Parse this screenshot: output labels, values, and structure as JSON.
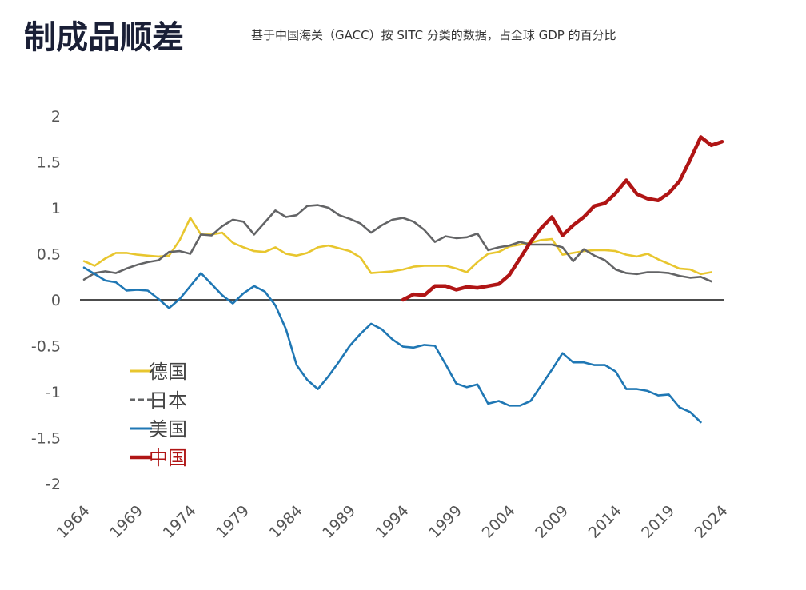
{
  "chart_data": {
    "type": "line",
    "title": "制成品顺差",
    "subtitle": "基于中国海关（GACC）按 SITC 分类的数据，占全球 GDP 的百分比",
    "xlabel": "",
    "ylabel": "",
    "xlim": [
      1964,
      2024
    ],
    "ylim": [
      -2,
      2
    ],
    "x_ticks": [
      "1964",
      "1969",
      "1974",
      "1979",
      "1984",
      "1989",
      "1994",
      "1999",
      "2004",
      "2009",
      "2014",
      "2019",
      "2024"
    ],
    "y_ticks": [
      "2",
      "1.5",
      "1",
      "0.5",
      "0",
      "-0.5",
      "-1",
      "-1.5",
      "-2"
    ],
    "grid": false,
    "zero_line": true,
    "legend_position": "bottom-left",
    "series": [
      {
        "name": "德国",
        "color": "#e8c62e",
        "style": "solid",
        "start": 1964,
        "values": [
          0.42,
          0.37,
          0.45,
          0.51,
          0.51,
          0.49,
          0.48,
          0.47,
          0.48,
          0.65,
          0.89,
          0.71,
          0.71,
          0.73,
          0.62,
          0.57,
          0.53,
          0.52,
          0.57,
          0.5,
          0.48,
          0.51,
          0.57,
          0.59,
          0.56,
          0.53,
          0.46,
          0.29,
          0.3,
          0.31,
          0.33,
          0.36,
          0.37,
          0.37,
          0.37,
          0.34,
          0.3,
          0.41,
          0.5,
          0.52,
          0.58,
          0.6,
          0.62,
          0.65,
          0.66,
          0.49,
          0.51,
          0.53,
          0.54,
          0.54,
          0.53,
          0.49,
          0.47,
          0.5,
          0.44,
          0.39,
          0.34,
          0.33,
          0.28,
          0.3
        ]
      },
      {
        "name": "日本",
        "color": "#636466",
        "style": "dashed-legend",
        "start": 1964,
        "values": [
          0.22,
          0.29,
          0.31,
          0.29,
          0.34,
          0.38,
          0.41,
          0.43,
          0.52,
          0.53,
          0.5,
          0.71,
          0.7,
          0.8,
          0.87,
          0.85,
          0.71,
          0.84,
          0.97,
          0.9,
          0.92,
          1.02,
          1.03,
          1.0,
          0.92,
          0.88,
          0.83,
          0.73,
          0.81,
          0.87,
          0.89,
          0.85,
          0.76,
          0.63,
          0.69,
          0.67,
          0.68,
          0.72,
          0.54,
          0.57,
          0.59,
          0.63,
          0.6,
          0.6,
          0.6,
          0.57,
          0.42,
          0.55,
          0.48,
          0.43,
          0.33,
          0.29,
          0.28,
          0.3,
          0.3,
          0.29,
          0.26,
          0.24,
          0.25,
          0.2
        ]
      },
      {
        "name": "美国",
        "color": "#1f77b4",
        "style": "solid",
        "start": 1964,
        "values": [
          0.35,
          0.28,
          0.21,
          0.19,
          0.1,
          0.11,
          0.1,
          0.01,
          -0.09,
          0.01,
          0.15,
          0.29,
          0.17,
          0.05,
          -0.04,
          0.07,
          0.15,
          0.09,
          -0.06,
          -0.32,
          -0.71,
          -0.87,
          -0.97,
          -0.83,
          -0.67,
          -0.5,
          -0.37,
          -0.26,
          -0.32,
          -0.43,
          -0.51,
          -0.52,
          -0.49,
          -0.5,
          -0.7,
          -0.91,
          -0.95,
          -0.92,
          -1.13,
          -1.1,
          -1.15,
          -1.15,
          -1.1,
          -0.93,
          -0.76,
          -0.58,
          -0.68,
          -0.68,
          -0.71,
          -0.71,
          -0.78,
          -0.97,
          -0.97,
          -0.99,
          -1.04,
          -1.03,
          -1.17,
          -1.22,
          -1.33
        ]
      },
      {
        "name": "中国",
        "color": "#b01515",
        "style": "thick",
        "start": 1994,
        "values": [
          0.0,
          0.06,
          0.05,
          0.15,
          0.15,
          0.11,
          0.14,
          0.13,
          0.15,
          0.17,
          0.27,
          0.45,
          0.63,
          0.78,
          0.9,
          0.7,
          0.81,
          0.9,
          1.02,
          1.05,
          1.16,
          1.3,
          1.15,
          1.1,
          1.08,
          1.16,
          1.29,
          1.52,
          1.77,
          1.68,
          1.72
        ]
      }
    ]
  }
}
